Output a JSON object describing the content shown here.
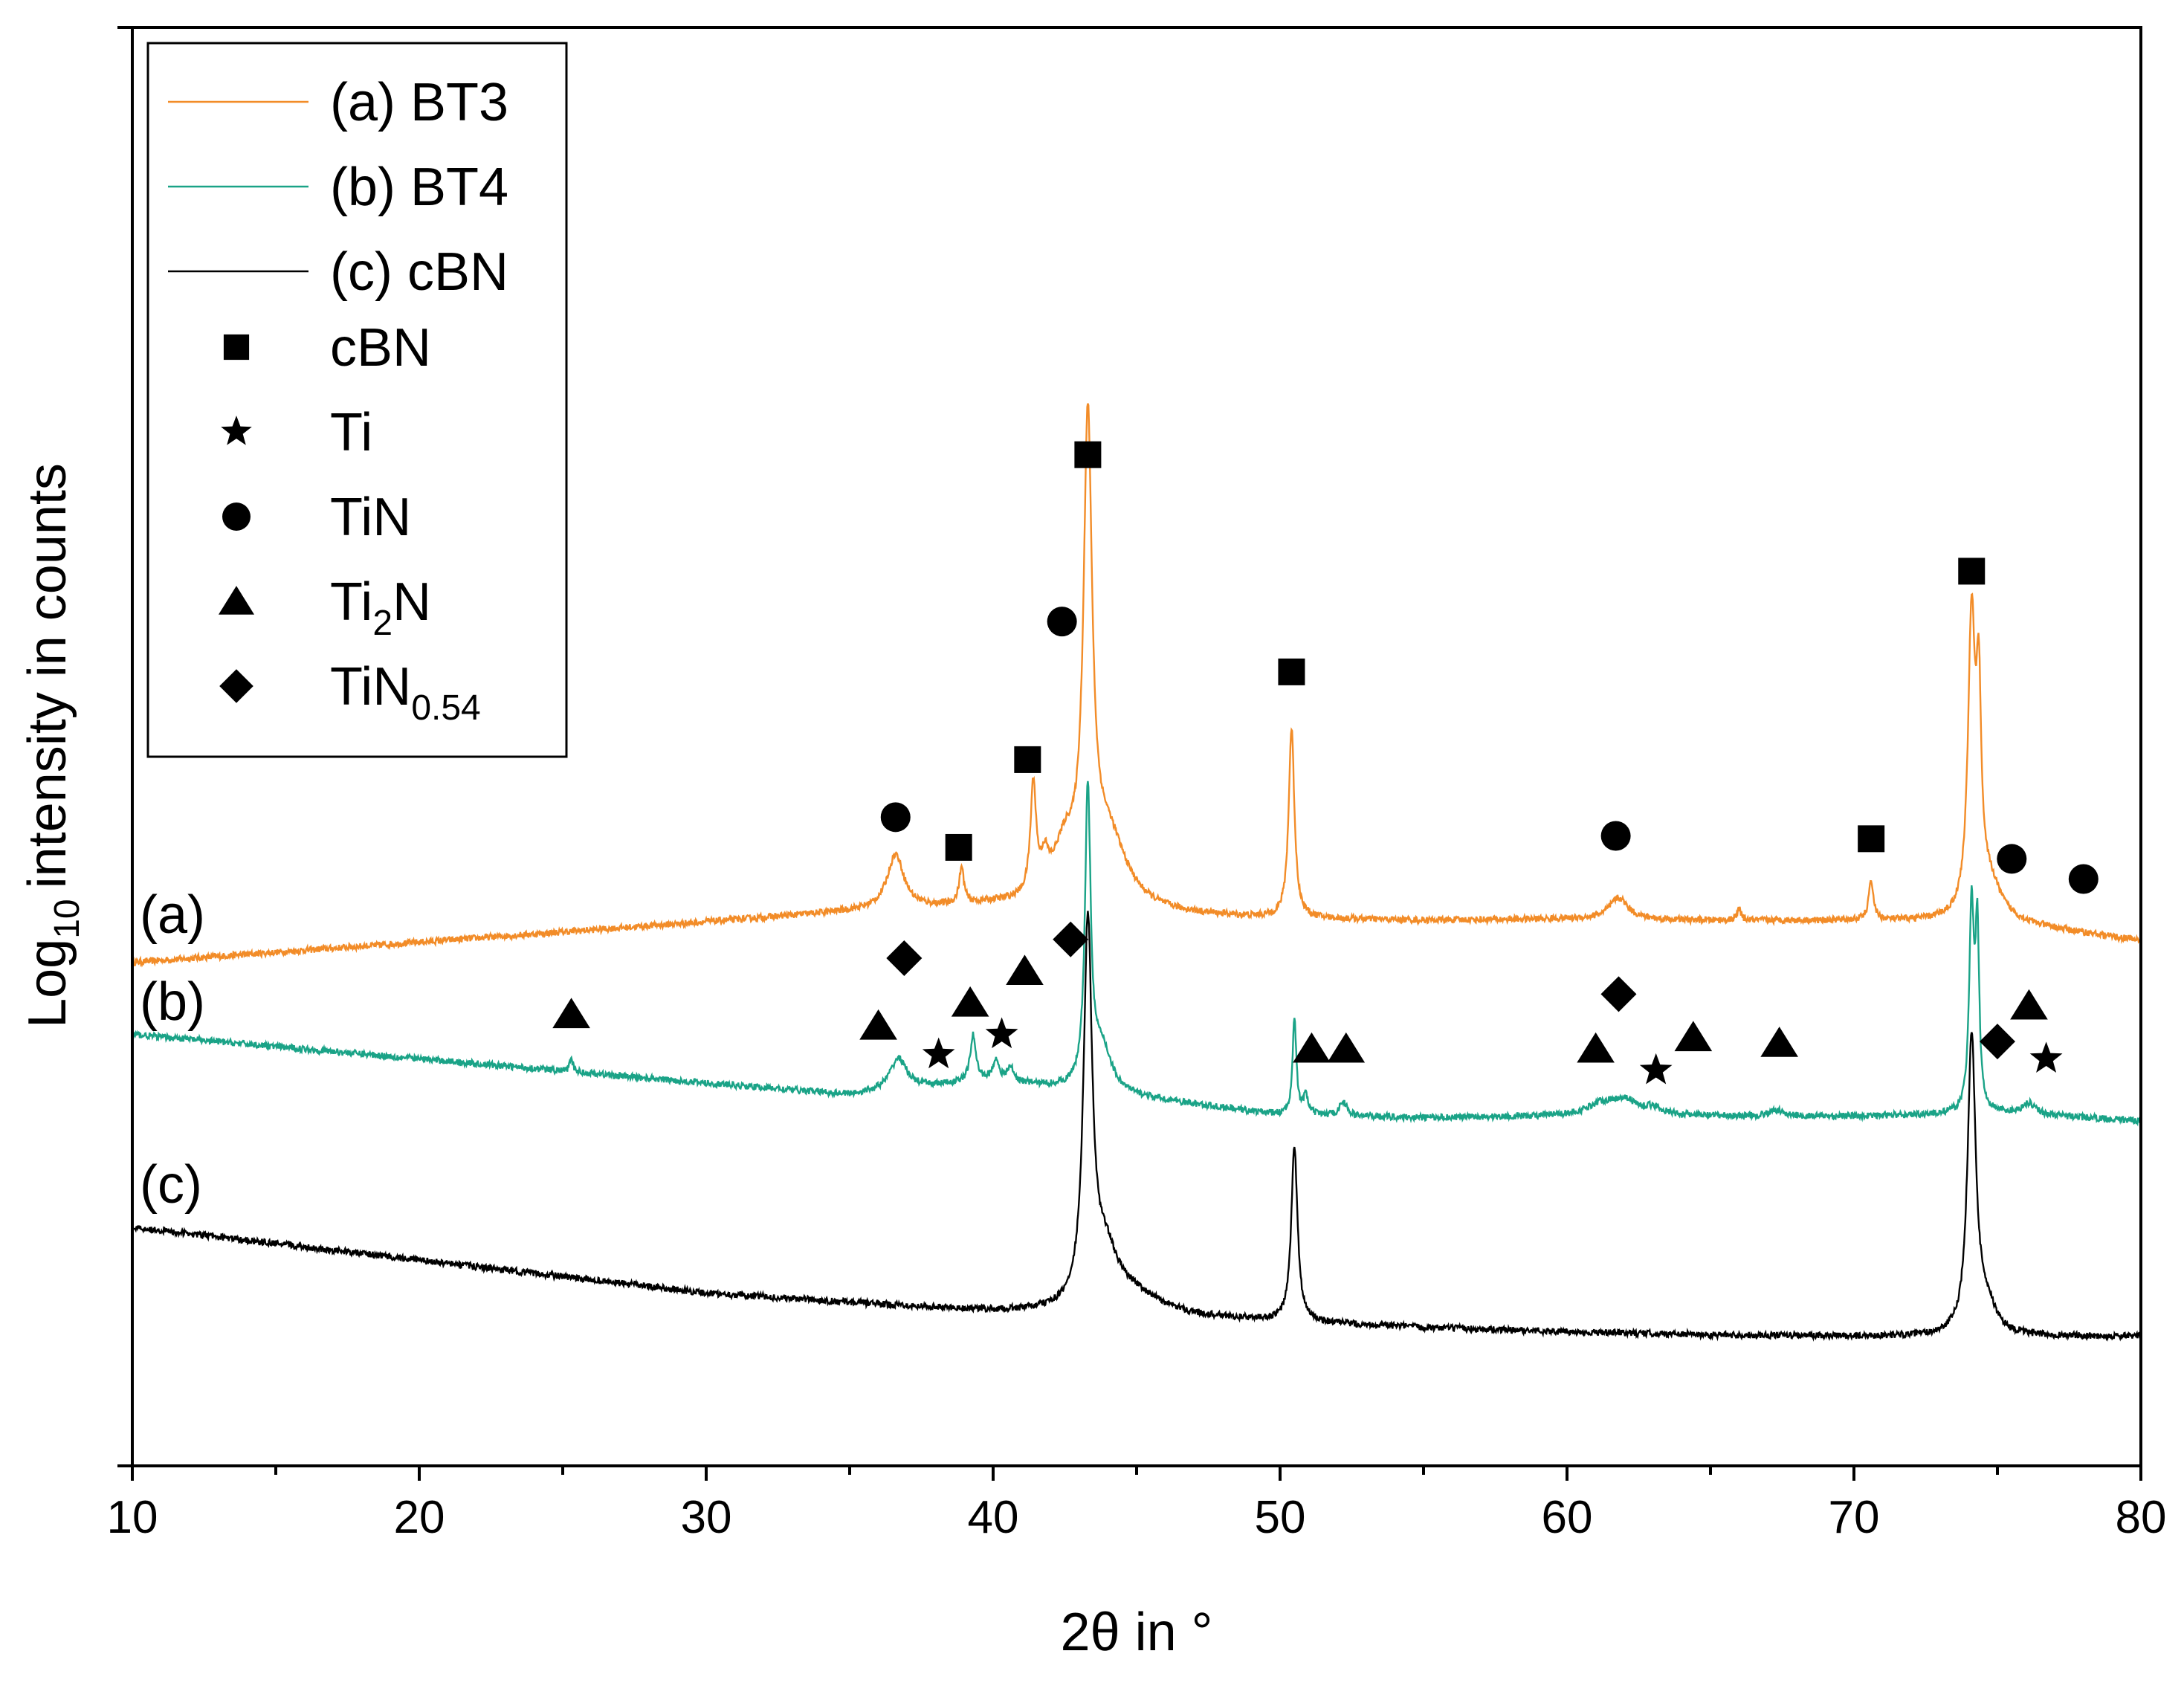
{
  "chart_data": {
    "type": "line",
    "xlabel": "2θ in °",
    "ylabel": "intensity in counts",
    "ylabel_prefix": "Log",
    "ylabel_sub": "10",
    "xlim": [
      10,
      80
    ],
    "ylim": [
      0,
      100
    ],
    "x_ticks": [
      10,
      20,
      30,
      40,
      50,
      60,
      70,
      80
    ],
    "y_scale_note": "log10, arbitrary vertical offset, no y tick labels",
    "series": [
      {
        "name": "(a) BT3",
        "short_label": "(a)",
        "color": "#f28c28",
        "baseline": [
          [
            10,
            35
          ],
          [
            20,
            36.4
          ],
          [
            30,
            37.8
          ],
          [
            35,
            38.5
          ],
          [
            40,
            38.9
          ],
          [
            45,
            38.3
          ],
          [
            50,
            38.0
          ],
          [
            55,
            37.9
          ],
          [
            60,
            38.0
          ],
          [
            65,
            37.9
          ],
          [
            70,
            37.9
          ],
          [
            75,
            37.8
          ],
          [
            80,
            36.5
          ]
        ],
        "peaks": [
          {
            "x": 36.6,
            "height": 3.8,
            "width": 0.35
          },
          {
            "x": 38.9,
            "height": 2.5,
            "width": 0.1
          },
          {
            "x": 41.4,
            "height": 7.6,
            "width": 0.12
          },
          {
            "x": 41.8,
            "height": 2.0,
            "width": 0.15
          },
          {
            "x": 42.5,
            "height": 3.5,
            "width": 0.5
          },
          {
            "x": 43.3,
            "height": 31.5,
            "width": 0.18
          },
          {
            "x": 44.0,
            "height": 5.0,
            "width": 0.8
          },
          {
            "x": 50.4,
            "height": 13.2,
            "width": 0.12
          },
          {
            "x": 61.8,
            "height": 1.5,
            "width": 0.4
          },
          {
            "x": 66.0,
            "height": 0.8,
            "width": 0.08
          },
          {
            "x": 70.6,
            "height": 2.7,
            "width": 0.1
          },
          {
            "x": 74.1,
            "height": 20.0,
            "width": 0.15
          },
          {
            "x": 74.35,
            "height": 13.0,
            "width": 0.1
          },
          {
            "x": 74.7,
            "height": 2.5,
            "width": 0.5
          }
        ]
      },
      {
        "name": "(b) BT4",
        "short_label": "(b)",
        "color": "#1aa387",
        "baseline": [
          [
            10,
            30
          ],
          [
            20,
            28.3
          ],
          [
            30,
            26.6
          ],
          [
            35,
            25.8
          ],
          [
            40,
            26.8
          ],
          [
            45,
            25.6
          ],
          [
            50,
            24.4
          ],
          [
            55,
            24.2
          ],
          [
            60,
            24.3
          ],
          [
            65,
            24.3
          ],
          [
            70,
            24.3
          ],
          [
            75,
            24.5
          ],
          [
            80,
            24.0
          ]
        ],
        "peaks": [
          {
            "x": 25.3,
            "height": 0.8,
            "width": 0.08
          },
          {
            "x": 36.7,
            "height": 2.2,
            "width": 0.35
          },
          {
            "x": 39.3,
            "height": 3.2,
            "width": 0.12
          },
          {
            "x": 40.1,
            "height": 1.4,
            "width": 0.12
          },
          {
            "x": 40.6,
            "height": 1.0,
            "width": 0.12
          },
          {
            "x": 43.3,
            "height": 20.5,
            "width": 0.12
          },
          {
            "x": 43.8,
            "height": 3.0,
            "width": 0.4
          },
          {
            "x": 50.5,
            "height": 6.8,
            "width": 0.08
          },
          {
            "x": 50.9,
            "height": 1.3,
            "width": 0.1
          },
          {
            "x": 52.2,
            "height": 1.0,
            "width": 0.15
          },
          {
            "x": 61.2,
            "height": 0.8,
            "width": 0.6
          },
          {
            "x": 62.0,
            "height": 1.0,
            "width": 0.5
          },
          {
            "x": 63.0,
            "height": 0.5,
            "width": 0.4
          },
          {
            "x": 67.3,
            "height": 0.4,
            "width": 0.3
          },
          {
            "x": 74.1,
            "height": 14.0,
            "width": 0.1
          },
          {
            "x": 74.3,
            "height": 12.0,
            "width": 0.08
          },
          {
            "x": 76.1,
            "height": 0.8,
            "width": 0.3
          }
        ]
      },
      {
        "name": "(c) cBN",
        "short_label": "(c)",
        "color": "#000000",
        "baseline": [
          [
            10,
            16.6
          ],
          [
            20,
            14.3
          ],
          [
            30,
            12.0
          ],
          [
            40,
            10.7
          ],
          [
            45,
            10.4
          ],
          [
            50,
            10.0
          ],
          [
            55,
            9.6
          ],
          [
            60,
            9.3
          ],
          [
            65,
            9.1
          ],
          [
            70,
            9.0
          ],
          [
            75,
            9.0
          ],
          [
            80,
            9.0
          ]
        ],
        "peaks": [
          {
            "x": 43.3,
            "height": 26.0,
            "width": 0.18
          },
          {
            "x": 43.9,
            "height": 3.5,
            "width": 0.5
          },
          {
            "x": 44.8,
            "height": 1.5,
            "width": 1.2
          },
          {
            "x": 50.5,
            "height": 12.2,
            "width": 0.13
          },
          {
            "x": 74.1,
            "height": 20.5,
            "width": 0.17
          },
          {
            "x": 74.6,
            "height": 2.0,
            "width": 0.4
          }
        ]
      }
    ],
    "phase_markers": [
      {
        "phase": "cBN",
        "symbol": "square",
        "points": [
          [
            43.3,
            70.3
          ],
          [
            38.8,
            43.0
          ],
          [
            41.2,
            49.1
          ],
          [
            50.4,
            55.2
          ],
          [
            70.6,
            43.6
          ],
          [
            74.1,
            62.2
          ]
        ]
      },
      {
        "phase": "Ti",
        "symbol": "star",
        "points": [
          [
            38.1,
            28.6
          ],
          [
            40.3,
            30.0
          ],
          [
            63.1,
            27.5
          ],
          [
            76.7,
            28.3
          ]
        ]
      },
      {
        "phase": "TiN",
        "symbol": "circle",
        "points": [
          [
            42.4,
            58.7
          ],
          [
            36.6,
            45.1
          ],
          [
            61.7,
            43.8
          ],
          [
            75.5,
            42.2
          ],
          [
            78.0,
            40.8
          ]
        ]
      },
      {
        "phase": "Ti2N",
        "symbol": "triangle",
        "points": [
          [
            25.3,
            31.4
          ],
          [
            36.0,
            30.6
          ],
          [
            39.2,
            32.2
          ],
          [
            41.1,
            34.4
          ],
          [
            51.1,
            29.0
          ],
          [
            52.3,
            29.0
          ],
          [
            61.0,
            29.0
          ],
          [
            64.4,
            29.8
          ],
          [
            67.4,
            29.4
          ],
          [
            76.1,
            32.0
          ]
        ]
      },
      {
        "phase": "TiN0.54",
        "symbol": "diamond",
        "points": [
          [
            36.9,
            35.3
          ],
          [
            42.7,
            36.6
          ],
          [
            61.8,
            32.8
          ],
          [
            75.0,
            29.5
          ]
        ]
      }
    ],
    "legend": {
      "position": "top-left",
      "lines": [
        {
          "label": "(a) BT3",
          "color": "#f28c28"
        },
        {
          "label": "(b) BT4",
          "color": "#1aa387"
        },
        {
          "label": "(c) cBN",
          "color": "#000000"
        }
      ],
      "symbols": [
        {
          "symbol": "square",
          "label": "cBN",
          "label_sub": "",
          "label_after": ""
        },
        {
          "symbol": "star",
          "label": "Ti",
          "label_sub": "",
          "label_after": ""
        },
        {
          "symbol": "circle",
          "label": "TiN",
          "label_sub": "",
          "label_after": ""
        },
        {
          "symbol": "triangle",
          "label": "Ti",
          "label_sub": "2",
          "label_after": "N"
        },
        {
          "symbol": "diamond",
          "label": "TiN",
          "label_sub": "0.54",
          "label_after": ""
        }
      ]
    }
  }
}
